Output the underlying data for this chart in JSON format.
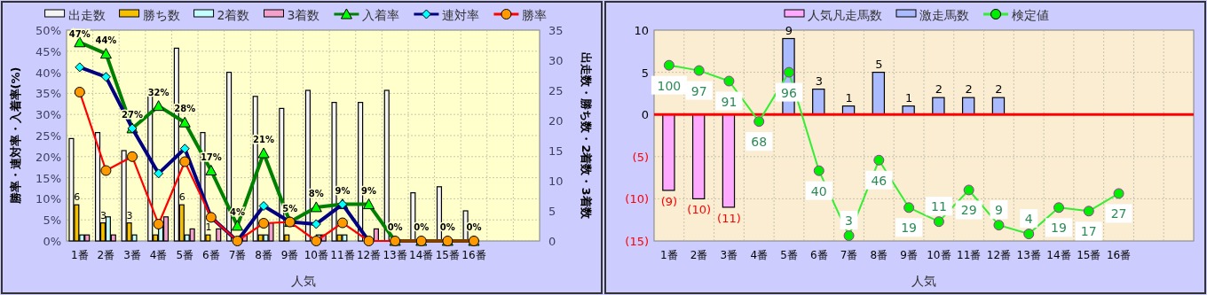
{
  "chart_data": [
    {
      "type": "bar",
      "categories": [
        "1番",
        "2番",
        "3番",
        "4番",
        "5番",
        "6番",
        "7番",
        "8番",
        "9番",
        "10番",
        "11番",
        "12番",
        "13番",
        "14番",
        "15番",
        "16番",
        null,
        null
      ],
      "xlabel": "人気",
      "ylabel": "勝率・連対率・入着率(%)",
      "y2label": "出走数・勝ち数・2着数・3着数",
      "ylim": [
        0,
        50
      ],
      "yticks": [
        {
          "value": 0,
          "label": "0%"
        },
        {
          "value": 5,
          "label": "5%"
        },
        {
          "value": 10,
          "label": "10%"
        },
        {
          "value": 15,
          "label": "15%"
        },
        {
          "value": 20,
          "label": "20%"
        },
        {
          "value": 25,
          "label": "25%"
        },
        {
          "value": 30,
          "label": "30%"
        },
        {
          "value": 35,
          "label": "35%"
        },
        {
          "value": 40,
          "label": "40%"
        },
        {
          "value": 45,
          "label": "45%"
        },
        {
          "value": 50,
          "label": "50%"
        }
      ],
      "y2lim": [
        0,
        35
      ],
      "y2ticks": [
        0,
        5,
        10,
        15,
        20,
        25,
        30,
        35
      ],
      "grid": true,
      "legend": "top",
      "series": [
        {
          "name": "出走数",
          "axis": "y2",
          "color": "#f4f4f4",
          "values": [
            17,
            18,
            15,
            25,
            32,
            18,
            28,
            24,
            22,
            25,
            23,
            23,
            25,
            8,
            9,
            5,
            null,
            null
          ]
        },
        {
          "name": "勝ち数",
          "axis": "y2",
          "color": "#f5c000",
          "values": [
            6,
            3,
            3,
            1,
            6,
            1,
            0,
            1,
            1,
            0,
            1,
            0,
            0,
            0,
            0,
            0,
            null,
            null
          ],
          "value_labels": [
            "6",
            "3",
            "3",
            null,
            "6",
            "1",
            null,
            null,
            null,
            null,
            null,
            null,
            null,
            null,
            null,
            null,
            null,
            null
          ]
        },
        {
          "name": "2着数",
          "axis": "y2",
          "color": "#c4ffff",
          "values": [
            1,
            4,
            1,
            3,
            1,
            0,
            0,
            1,
            0,
            1,
            1,
            0,
            0,
            0,
            0,
            0,
            null,
            null
          ]
        },
        {
          "name": "3着数",
          "axis": "y2",
          "color": "#f4a0cc",
          "values": [
            1,
            1,
            0,
            4,
            2,
            2,
            1,
            3,
            0,
            1,
            0,
            2,
            0,
            0,
            0,
            0,
            null,
            null
          ]
        },
        {
          "name": "入着率",
          "type": "line",
          "marker": "triangle",
          "color": "#008000",
          "colors": [
            "#00ff00",
            "#00ff00",
            "#00ff00",
            "#00ff00",
            "#00ff00",
            "#00ff00",
            "#00ff00",
            "#00ff00",
            "#00ff00",
            "#00ff00",
            "#00ff00",
            "#00ff00",
            "#00ff00",
            "#00ff00",
            "#00ff00",
            "#00ff00",
            null,
            null
          ],
          "values": [
            47.1,
            44.4,
            26.7,
            32,
            28.1,
            16.7,
            3.6,
            20.8,
            4.5,
            8,
            8.7,
            8.7,
            0,
            0,
            0,
            0,
            null,
            null
          ],
          "value_labels": [
            "47%",
            "44%",
            "27%",
            "32%",
            "28%",
            "17%",
            "4%",
            "21%",
            "5%",
            "8%",
            "9%",
            "9%",
            "0%",
            "0%",
            "0%",
            "0%",
            null,
            null
          ]
        },
        {
          "name": "連対率",
          "type": "line",
          "marker": "diamond",
          "color": "#000080",
          "colors": [
            "#00ffff",
            "#00ffff",
            "#00ffff",
            "#00ffff",
            "#00ffff",
            "#00ffff",
            "#00ffff",
            "#00ffff",
            "#00ffff",
            "#00ffff",
            "#00ffff",
            "#00ffff",
            null,
            null,
            null,
            null,
            null,
            null
          ],
          "values": [
            41.2,
            38.9,
            26.7,
            16,
            21.9,
            5.6,
            0,
            8.3,
            4.5,
            4,
            8.7,
            0,
            null,
            null,
            null,
            null,
            null,
            null
          ]
        },
        {
          "name": "勝率",
          "type": "line",
          "marker": "circle",
          "color": "#ff0000",
          "colors": [
            "#ff9900",
            "#ff9900",
            "#ff9900",
            "#ff9900",
            "#ff9900",
            "#ff9900",
            "#ff9900",
            "#ff9900",
            "#ff9900",
            "#ff9900",
            "#ff9900",
            "#ff9900",
            "#ff9900",
            "#ff9900",
            "#ff9900",
            "#ff9900",
            null,
            null
          ],
          "values": [
            35.3,
            16.7,
            20,
            4,
            18.8,
            5.6,
            0,
            4.2,
            4.5,
            0,
            4.3,
            0,
            0,
            0,
            0,
            0,
            null,
            null
          ]
        }
      ]
    },
    {
      "type": "bar",
      "categories": [
        "1番",
        "2番",
        "3番",
        "4番",
        "5番",
        "6番",
        "7番",
        "8番",
        "9番",
        "10番",
        "11番",
        "12番",
        "13番",
        "14番",
        "15番",
        "16番",
        null,
        null
      ],
      "xlabel": "人気",
      "ylim": [
        -15,
        10
      ],
      "yticks": [
        {
          "value": -15,
          "label": "(15)"
        },
        {
          "value": -10,
          "label": "(10)"
        },
        {
          "value": -5,
          "label": "(5)"
        },
        0,
        5,
        10
      ],
      "y2lim": [
        0,
        120
      ],
      "grid": true,
      "legend": "top",
      "stacked": true,
      "ref_lines": [
        {
          "axis": "y",
          "value": 0,
          "color": "#ff0000"
        }
      ],
      "series": [
        {
          "name": "人気凡走馬数",
          "color": "#ffaaff",
          "values": [
            -9,
            -10,
            -11,
            null,
            null,
            null,
            null,
            null,
            null,
            null,
            null,
            null,
            null,
            null,
            null,
            null,
            null,
            null
          ],
          "value_labels": [
            "(9)",
            "(10)",
            "(11)",
            null,
            null,
            null,
            null,
            null,
            null,
            null,
            null,
            null,
            null,
            null,
            null,
            null,
            null,
            null
          ]
        },
        {
          "name": "激走馬数",
          "color": "#aabbff",
          "values": [
            null,
            null,
            null,
            null,
            9,
            3,
            1,
            5,
            1,
            2,
            2,
            2,
            null,
            null,
            null,
            null,
            null,
            null
          ],
          "value_labels": [
            null,
            null,
            null,
            null,
            "9",
            "3",
            "1",
            "5",
            "1",
            "2",
            "2",
            "2",
            null,
            null,
            null,
            null,
            null,
            null
          ]
        },
        {
          "name": "検定値",
          "type": "line",
          "axis": "y2",
          "marker": "circle",
          "color": "#33ee33",
          "colors": [
            "#00ee00",
            "#00ee00",
            "#00ee00",
            "#00ee00",
            "#00ee00",
            "#00ee00",
            "#00ee00",
            "#00ee00",
            "#00ee00",
            "#00ee00",
            "#00ee00",
            "#00ee00",
            "#00ee00",
            "#00ee00",
            "#00ee00",
            "#00ee00",
            null,
            null
          ],
          "values": [
            100,
            97,
            91,
            68,
            96,
            40,
            3,
            46,
            19,
            11,
            29,
            9,
            4,
            19,
            17,
            27,
            null,
            null
          ],
          "value_labels": [
            "100",
            "97",
            "91",
            "68",
            "96",
            "40",
            "3",
            "46",
            "19",
            "11",
            "29",
            "9",
            "4",
            "19",
            "17",
            "27",
            null,
            null
          ]
        }
      ]
    }
  ]
}
